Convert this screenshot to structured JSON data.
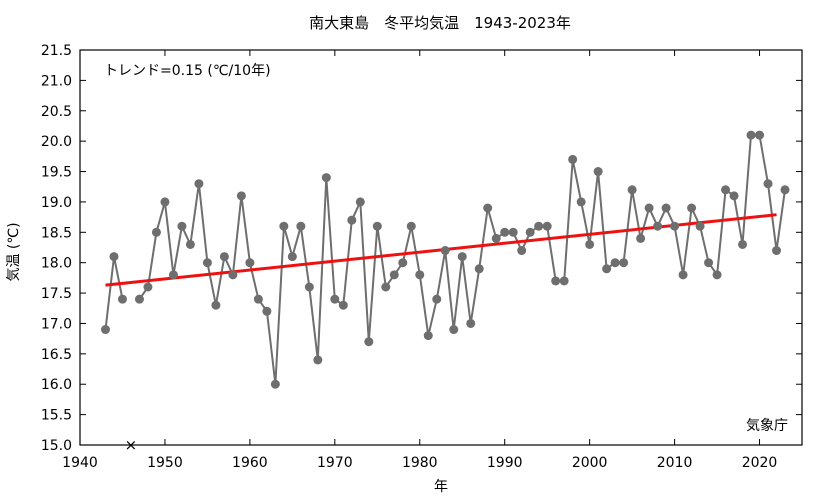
{
  "chart_data": {
    "type": "line",
    "title": "南大東島　冬平均気温　1943-2023年",
    "xlabel": "年",
    "ylabel": "気温 (℃)",
    "xlim": [
      1940,
      2025
    ],
    "ylim": [
      15.0,
      21.5
    ],
    "x_ticks": [
      1940,
      1950,
      1960,
      1970,
      1980,
      1990,
      2000,
      2010,
      2020
    ],
    "y_ticks": [
      15.0,
      15.5,
      16.0,
      16.5,
      17.0,
      17.5,
      18.0,
      18.5,
      19.0,
      19.5,
      20.0,
      20.5,
      21.0,
      21.5
    ],
    "annotation": "トレンド=0.15 (℃/10年)",
    "source": "気象庁",
    "grid": false,
    "series": [
      {
        "color": "#6e6e6e",
        "x": [
          1943,
          1944,
          1945,
          1947,
          1948,
          1949,
          1950,
          1951,
          1952,
          1953,
          1954,
          1955,
          1956,
          1957,
          1958,
          1959,
          1960,
          1961,
          1962,
          1963,
          1964,
          1965,
          1966,
          1967,
          1968,
          1969,
          1970,
          1971,
          1972,
          1973,
          1974,
          1975,
          1976,
          1977,
          1978,
          1979,
          1980,
          1981,
          1982,
          1983,
          1984,
          1985,
          1986,
          1987,
          1988,
          1989,
          1990,
          1991,
          1992,
          1993,
          1994,
          1995,
          1996,
          1997,
          1998,
          1999,
          2000,
          2001,
          2002,
          2003,
          2004,
          2005,
          2006,
          2007,
          2008,
          2009,
          2010,
          2011,
          2012,
          2013,
          2014,
          2015,
          2016,
          2017,
          2018,
          2019,
          2020,
          2021,
          2022,
          2023
        ],
        "values": [
          16.9,
          18.1,
          17.4,
          17.4,
          17.6,
          18.5,
          19.0,
          17.8,
          18.6,
          18.3,
          19.3,
          18.0,
          17.3,
          18.1,
          17.8,
          19.1,
          18.0,
          17.4,
          17.2,
          16.0,
          18.6,
          18.1,
          18.6,
          17.6,
          16.4,
          19.4,
          17.4,
          17.3,
          18.7,
          19.0,
          16.7,
          18.6,
          17.6,
          17.8,
          18.0,
          18.6,
          17.8,
          16.8,
          17.4,
          18.2,
          16.9,
          18.1,
          17.0,
          17.9,
          18.9,
          18.4,
          18.5,
          18.5,
          18.2,
          18.5,
          18.6,
          18.6,
          17.7,
          17.7,
          19.7,
          19.0,
          18.3,
          19.5,
          17.9,
          18.0,
          18.0,
          19.2,
          18.4,
          18.9,
          18.6,
          18.9,
          18.6,
          17.8,
          18.9,
          18.6,
          18.0,
          17.8,
          19.2,
          19.1,
          18.3,
          20.1,
          20.1,
          19.3,
          18.2,
          19.2
        ]
      },
      {
        "color": "#ee1111",
        "x": [
          1943,
          2022
        ],
        "values": [
          17.63,
          18.79
        ]
      }
    ],
    "missing_marker": {
      "symbol": "×",
      "x": 1946,
      "y": 15.0
    }
  }
}
